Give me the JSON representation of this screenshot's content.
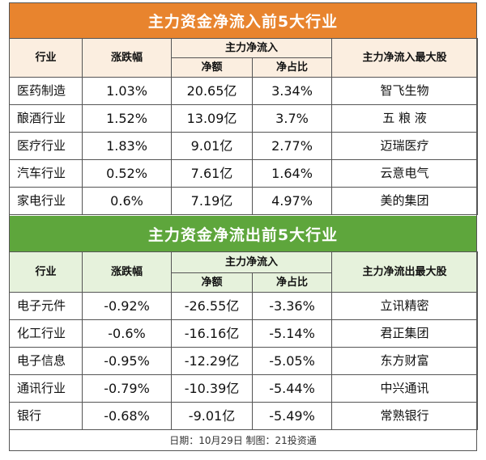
{
  "inflow": {
    "title": "主力资金净流入前5大行业",
    "headers": {
      "industry": "行业",
      "change": "涨跌幅",
      "net_flow_group": "主力净流入",
      "amount": "净额",
      "ratio": "净占比",
      "top_stock": "主力净流入最大股"
    },
    "rows": [
      {
        "industry": "医药制造",
        "change": "1.03%",
        "amount": "20.65亿",
        "ratio": "3.34%",
        "stock": "智飞生物"
      },
      {
        "industry": "酿酒行业",
        "change": "1.52%",
        "amount": "13.09亿",
        "ratio": "3.7%",
        "stock": "五 粮 液"
      },
      {
        "industry": "医疗行业",
        "change": "1.83%",
        "amount": "9.01亿",
        "ratio": "2.77%",
        "stock": "迈瑞医疗"
      },
      {
        "industry": "汽车行业",
        "change": "0.52%",
        "amount": "7.61亿",
        "ratio": "1.64%",
        "stock": "云意电气"
      },
      {
        "industry": "家电行业",
        "change": "0.6%",
        "amount": "7.19亿",
        "ratio": "4.97%",
        "stock": "美的集团"
      }
    ]
  },
  "outflow": {
    "title": "主力资金净流出前5大行业",
    "headers": {
      "industry": "行业",
      "change": "涨跌幅",
      "net_flow_group": "主力净流入",
      "amount": "净额",
      "ratio": "净占比",
      "top_stock": "主力净流出最大股"
    },
    "rows": [
      {
        "industry": "电子元件",
        "change": "-0.92%",
        "amount": "-26.55亿",
        "ratio": "-3.36%",
        "stock": "立讯精密"
      },
      {
        "industry": "化工行业",
        "change": "-0.6%",
        "amount": "-16.16亿",
        "ratio": "-5.14%",
        "stock": "君正集团"
      },
      {
        "industry": "电子信息",
        "change": "-0.95%",
        "amount": "-12.29亿",
        "ratio": "-5.05%",
        "stock": "东方财富"
      },
      {
        "industry": "通讯行业",
        "change": "-0.79%",
        "amount": "-10.39亿",
        "ratio": "-5.44%",
        "stock": "中兴通讯"
      },
      {
        "industry": "银行",
        "change": "-0.68%",
        "amount": "-9.01亿",
        "ratio": "-5.49%",
        "stock": "常熟银行"
      }
    ]
  },
  "footer": "日期：10月29日 制图：21投资通",
  "colors": {
    "inflow_accent": "#e8842e",
    "outflow_accent": "#5ea63c"
  }
}
